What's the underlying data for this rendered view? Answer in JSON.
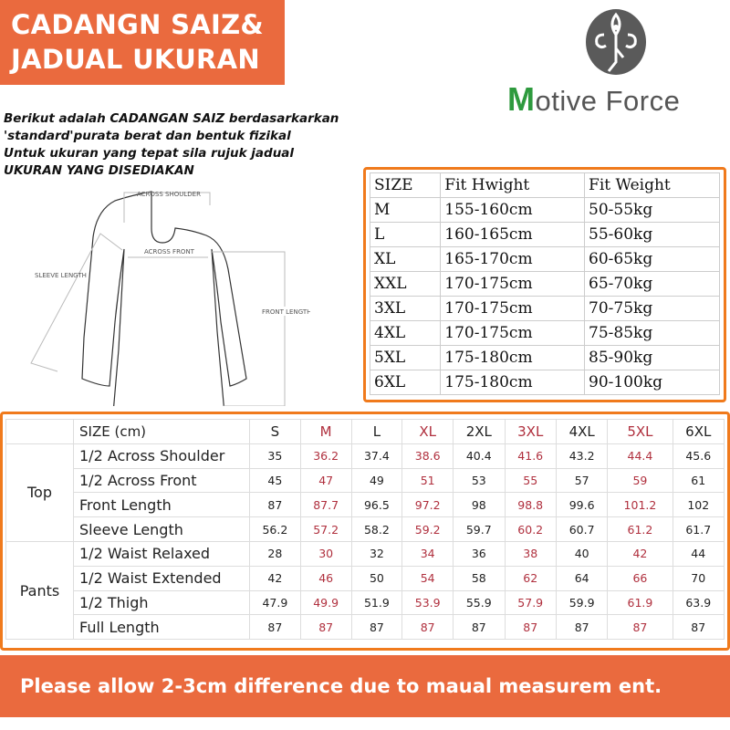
{
  "header": {
    "line1": "CADANGN SAIZ&",
    "line2": "JADUAL UKURAN"
  },
  "logo": {
    "brand_first": "M",
    "brand_rest": "otive Force",
    "icon": "yoga-tree-pose-emblem",
    "colors": {
      "green": "#2e9a3e",
      "gray": "#555555"
    }
  },
  "intro": [
    "Berikut adalah CADANGAN SAIZ berdasarkarkan",
    "'standard'purata berat dan bentuk fizikal",
    "Untuk ukuran yang tepat sila rujuk jadual",
    "UKURAN YANG DISEDIAKAN"
  ],
  "diagram": {
    "across_shoulder": "ACROSS SHOULDER",
    "across_front": "ACROSS FRONT",
    "sleeve_length": "SLEEVE LENGTH",
    "front_length": "FRONT LENGTH"
  },
  "size_table": {
    "headers": [
      "SIZE",
      "Fit Hwight",
      "Fit Weight"
    ],
    "rows": [
      [
        "M",
        "155-160cm",
        "50-55kg"
      ],
      [
        "L",
        "160-165cm",
        "55-60kg"
      ],
      [
        "XL",
        "165-170cm",
        "60-65kg"
      ],
      [
        "XXL",
        "170-175cm",
        "65-70kg"
      ],
      [
        "3XL",
        "170-175cm",
        "70-75kg"
      ],
      [
        "4XL",
        "170-175cm",
        "75-85kg"
      ],
      [
        "5XL",
        "175-180cm",
        "85-90kg"
      ],
      [
        "6XL",
        "175-180cm",
        "90-100kg"
      ]
    ]
  },
  "measure_table": {
    "header_label": "SIZE (cm)",
    "sizes": [
      "S",
      "M",
      "L",
      "XL",
      "2XL",
      "3XL",
      "4XL",
      "5XL",
      "6XL"
    ],
    "groups": [
      {
        "name": "Top",
        "rows": [
          {
            "label": "1/2 Across Shoulder",
            "values": [
              "35",
              "36.2",
              "37.4",
              "38.6",
              "40.4",
              "41.6",
              "43.2",
              "44.4",
              "45.6"
            ]
          },
          {
            "label": "1/2 Across Front",
            "values": [
              "45",
              "47",
              "49",
              "51",
              "53",
              "55",
              "57",
              "59",
              "61"
            ]
          },
          {
            "label": "Front Length",
            "values": [
              "87",
              "87.7",
              "96.5",
              "97.2",
              "98",
              "98.8",
              "99.6",
              "101.2",
              "102"
            ]
          },
          {
            "label": "Sleeve Length",
            "values": [
              "56.2",
              "57.2",
              "58.2",
              "59.2",
              "59.7",
              "60.2",
              "60.7",
              "61.2",
              "61.7"
            ]
          }
        ]
      },
      {
        "name": "Pants",
        "rows": [
          {
            "label": "1/2 Waist Relaxed",
            "values": [
              "28",
              "30",
              "32",
              "34",
              "36",
              "38",
              "40",
              "42",
              "44"
            ]
          },
          {
            "label": "1/2 Waist Extended",
            "values": [
              "42",
              "46",
              "50",
              "54",
              "58",
              "62",
              "64",
              "66",
              "70"
            ]
          },
          {
            "label": "1/2 Thigh",
            "values": [
              "47.9",
              "49.9",
              "51.9",
              "53.9",
              "55.9",
              "57.9",
              "59.9",
              "61.9",
              "63.9"
            ]
          },
          {
            "label": "Full Length",
            "values": [
              "87",
              "87",
              "87",
              "87",
              "87",
              "87",
              "87",
              "87",
              "87"
            ]
          }
        ]
      }
    ]
  },
  "footer": {
    "text": "Please allow 2-3cm difference due to maual measurem ent."
  },
  "colors": {
    "accent": "#ea6a3e",
    "border": "#f07a1c",
    "alt_value": "#b0303e"
  }
}
